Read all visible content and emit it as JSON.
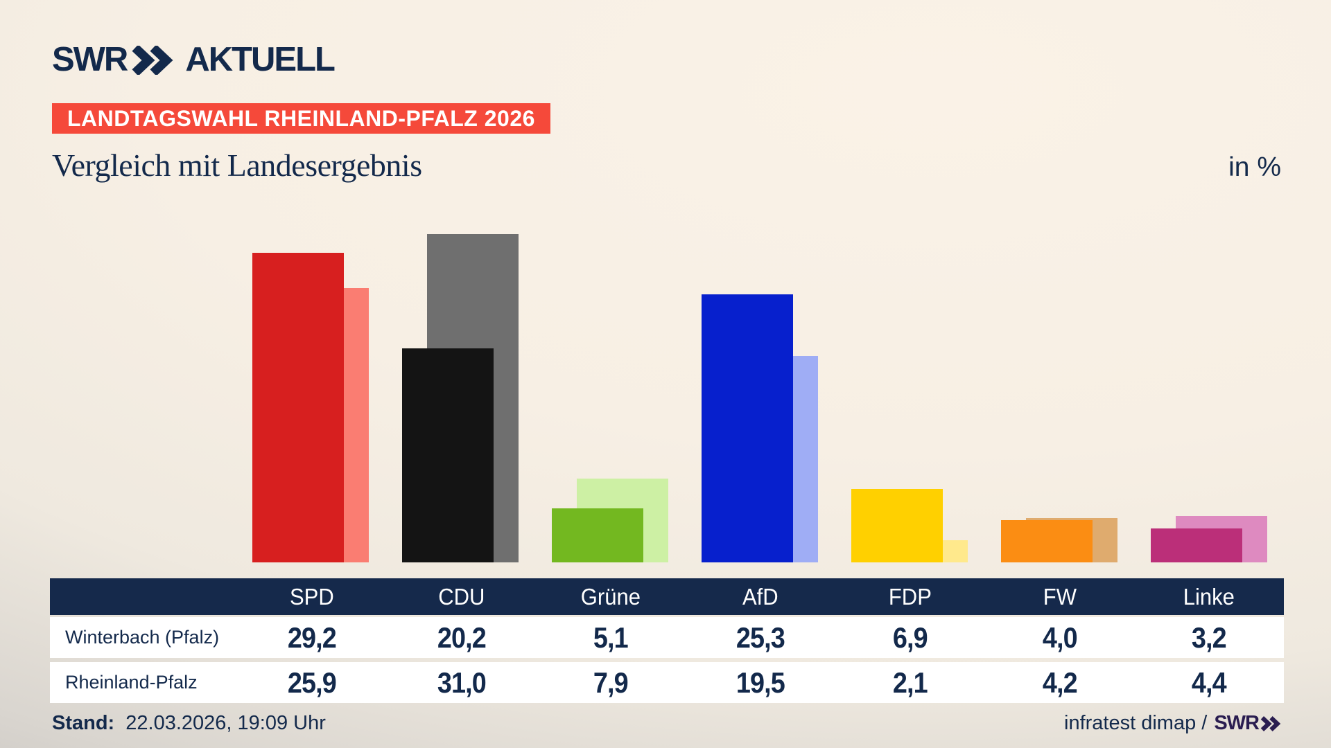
{
  "brand": {
    "logo": "SWR",
    "logo_suffix": "AKTUELL"
  },
  "badge": {
    "text": "LANDTAGSWAHL RHEINLAND-PFALZ 2026",
    "bg": "#f5493a"
  },
  "title": {
    "text": "Vergleich mit Landesergebnis",
    "unit": "in %"
  },
  "chart_data": {
    "type": "bar",
    "title": "Vergleich mit Landesergebnis",
    "unit": "%",
    "categories": [
      "SPD",
      "CDU",
      "Grüne",
      "AfD",
      "FDP",
      "FW",
      "Linke"
    ],
    "series": [
      {
        "name": "Winterbach (Pfalz)",
        "values": [
          29.2,
          20.2,
          5.1,
          25.3,
          6.9,
          4.0,
          3.2
        ],
        "colors": [
          "#d71f1f",
          "#141414",
          "#73b820",
          "#0720cd",
          "#ffd000",
          "#fb8d13",
          "#bb2f79"
        ]
      },
      {
        "name": "Rheinland-Pfalz",
        "values": [
          25.9,
          31.0,
          7.9,
          19.5,
          2.1,
          4.2,
          4.4
        ],
        "colors": [
          "#fa7d72",
          "#6f6f6f",
          "#cdf0a4",
          "#9fadf5",
          "#ffe98c",
          "#dfab6e",
          "#de8ac0"
        ]
      }
    ],
    "ylim": [
      0,
      35
    ],
    "legend_position": "none",
    "grid": false
  },
  "table": {
    "header": [
      "",
      "SPD",
      "CDU",
      "Grüne",
      "AfD",
      "FDP",
      "FW",
      "Linke"
    ],
    "rows": [
      {
        "label": "Winterbach (Pfalz)",
        "values": [
          "29,2",
          "20,2",
          "5,1",
          "25,3",
          "6,9",
          "4,0",
          "3,2"
        ]
      },
      {
        "label": "Rheinland-Pfalz",
        "values": [
          "25,9",
          "31,0",
          "7,9",
          "19,5",
          "2,1",
          "4,2",
          "4,4"
        ]
      }
    ]
  },
  "footer": {
    "stand_label": "Stand:",
    "stand_value": "22.03.2026, 19:09 Uhr",
    "source_text": "infratest dimap /",
    "source_brand": "SWR"
  },
  "colors": {
    "navy": "#13294b",
    "table_header_bg": "#15294b",
    "badge_bg": "#f5493a",
    "background_cream": "#f7efe4"
  }
}
